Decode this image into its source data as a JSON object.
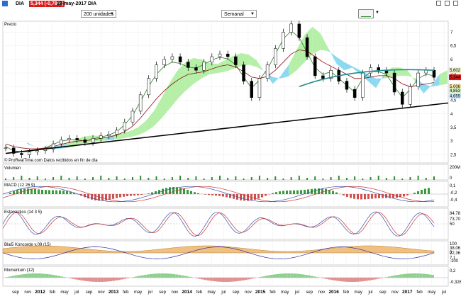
{
  "header": {
    "ticker": "DIA",
    "last_price": "5,344 (-0,78%)",
    "date": "18-may-2017 DIA"
  },
  "toolbar": {
    "units_select": "200 unidades",
    "period_select": "Semanal"
  },
  "watermark": "© ProRealTime.com  Datos recibidos en fin de día",
  "colors": {
    "background": "#ffffff",
    "candle": "#000000",
    "ichimoku_cloud_a": "#66ccee",
    "ichimoku_cloud_b": "#9de98a",
    "trend_line": "#000000",
    "channel_line": "#1e8c8c",
    "price_badge": "#d91a1a"
  },
  "panels": {
    "price": {
      "label": "Precio"
    },
    "volume": {
      "label": "Volumen",
      "axis": [
        "200M",
        "0"
      ]
    },
    "macd": {
      "label": "MACD (12 26 9)",
      "axis": [
        "0,1",
        "-0,2",
        "-0,4"
      ]
    },
    "stochastic": {
      "label": "Estocástico (14 3 5)",
      "axis": [
        "50"
      ],
      "badges": [
        "84,78",
        "73,70"
      ]
    },
    "blai5": {
      "label": "Blai5 Koncorde v.09 (15)",
      "axis": [
        "100",
        "0",
        "-100"
      ],
      "badges": [
        "38,06",
        "22,36",
        "7,1"
      ]
    },
    "momentum": {
      "label": "Momentum (12)",
      "axis": [
        "0,2"
      ],
      "badges": [
        "-0,326"
      ]
    }
  },
  "chart_data": {
    "type": "line",
    "title": "DIA",
    "series_type": "candlestick",
    "frequency": "Semanal",
    "x_ticks": [
      "sep",
      "nov",
      "2012",
      "feb",
      "may",
      "jul",
      "sep",
      "nov",
      "2013",
      "feb",
      "may",
      "jul",
      "sep",
      "nov",
      "2014",
      "feb",
      "may",
      "jul",
      "sep",
      "nov",
      "2015",
      "feb",
      "may",
      "jul",
      "sep",
      "nov",
      "2016",
      "feb",
      "may",
      "jul",
      "sep",
      "nov",
      "2017",
      "feb",
      "may",
      "jul"
    ],
    "y_ticks": [
      2.5,
      3,
      3.5,
      4,
      4.5,
      5,
      5.5,
      6,
      6.5,
      7
    ],
    "ylim": [
      2.2,
      7.4
    ],
    "price_badges": [
      "5,602",
      "5,344",
      "5,006",
      "4,853",
      "4,659"
    ],
    "close": [
      2.75,
      2.55,
      2.5,
      2.6,
      2.65,
      2.7,
      2.9,
      3.05,
      3.1,
      3.05,
      2.95,
      3.1,
      3.2,
      3.25,
      3.4,
      3.7,
      4.1,
      4.7,
      5.3,
      5.8,
      6.0,
      6.1,
      5.9,
      5.7,
      5.6,
      5.9,
      6.1,
      6.2,
      6.1,
      5.8,
      5.2,
      4.6,
      5.3,
      5.8,
      6.4,
      7.0,
      7.3,
      6.8,
      6.1,
      5.4,
      5.3,
      5.6,
      5.2,
      4.9,
      4.6,
      5.5,
      5.7,
      5.6,
      5.5,
      4.8,
      4.35,
      5.0,
      5.5,
      5.6,
      5.34
    ],
    "overlays": [
      {
        "name": "ma-short",
        "color": "#2a7a2a",
        "values": [
          2.8,
          2.65,
          2.6,
          2.62,
          2.68,
          2.75,
          2.88,
          3.0,
          3.05,
          3.05,
          3.0,
          3.08,
          3.15,
          3.22,
          3.35,
          3.6,
          3.95,
          4.45,
          5.0,
          5.45,
          5.75,
          5.9,
          5.85,
          5.72,
          5.68,
          5.82,
          5.98,
          6.08,
          6.02,
          5.8,
          5.35,
          4.95,
          5.25,
          5.65,
          6.2,
          6.75,
          7.05,
          6.8,
          6.25,
          5.7,
          5.45,
          5.55,
          5.3,
          5.05,
          4.8,
          5.3,
          5.55,
          5.55,
          5.45,
          5.0,
          4.6,
          4.9,
          5.3,
          5.45,
          5.4
        ]
      },
      {
        "name": "ma-long",
        "color": "#8a1010",
        "values": [
          2.9,
          2.8,
          2.75,
          2.72,
          2.72,
          2.75,
          2.8,
          2.88,
          2.95,
          3.0,
          3.02,
          3.05,
          3.1,
          3.15,
          3.22,
          3.35,
          3.55,
          3.85,
          4.2,
          4.55,
          4.85,
          5.1,
          5.3,
          5.45,
          5.5,
          5.55,
          5.65,
          5.75,
          5.8,
          5.72,
          5.55,
          5.35,
          5.3,
          5.38,
          5.6,
          5.9,
          6.2,
          6.35,
          6.3,
          6.1,
          5.9,
          5.75,
          5.6,
          5.45,
          5.3,
          5.3,
          5.35,
          5.4,
          5.4,
          5.3,
          5.1,
          5.0,
          5.05,
          5.1,
          5.15
        ]
      }
    ],
    "trend_line": [
      [
        0,
        2.55
      ],
      [
        54,
        4.4
      ]
    ],
    "channel_line": [
      [
        37,
        5.0
      ],
      [
        54,
        5.6
      ]
    ]
  }
}
